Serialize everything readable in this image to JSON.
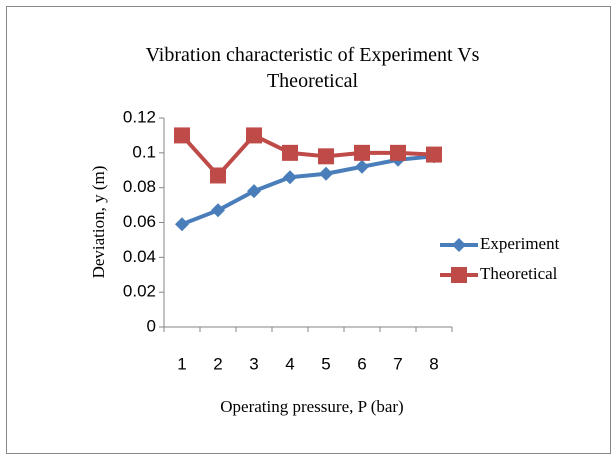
{
  "chart_data": {
    "type": "line",
    "title": "Vibration characteristic of Experiment Vs Theoretical",
    "x_label": "Operating pressure, P (bar)",
    "y_label": "Deviation, y (m)",
    "categories": [
      "1",
      "2",
      "3",
      "4",
      "5",
      "6",
      "7",
      "8"
    ],
    "series": [
      {
        "name": "Experiment",
        "color": "#4a7ebb",
        "marker": "diamond",
        "values": [
          0.059,
          0.067,
          0.078,
          0.086,
          0.088,
          0.092,
          0.096,
          0.098
        ]
      },
      {
        "name": "Theoretical",
        "color": "#be4b48",
        "marker": "square",
        "values": [
          0.11,
          0.087,
          0.11,
          0.1,
          0.098,
          0.1,
          0.1,
          0.099
        ]
      }
    ],
    "ylim": [
      0,
      0.12
    ],
    "yticks": [
      0,
      0.02,
      0.04,
      0.06,
      0.08,
      0.1,
      0.12
    ],
    "grid": false,
    "legend": "right"
  }
}
